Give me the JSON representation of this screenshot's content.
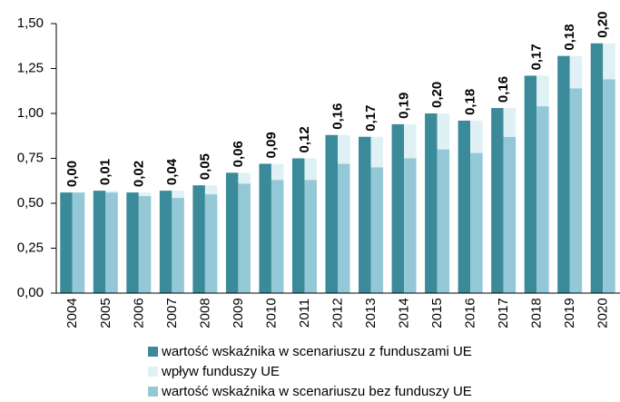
{
  "chart_data": {
    "type": "bar",
    "categories": [
      "2004",
      "2005",
      "2006",
      "2007",
      "2008",
      "2009",
      "2010",
      "2011",
      "2012",
      "2013",
      "2014",
      "2015",
      "2016",
      "2017",
      "2018",
      "2019",
      "2020"
    ],
    "series": [
      {
        "name": "wartość wskaźnika w scenariuszu z funduszami UE",
        "color": "#3a8a99",
        "values": [
          0.56,
          0.57,
          0.56,
          0.57,
          0.6,
          0.67,
          0.72,
          0.75,
          0.88,
          0.87,
          0.94,
          1.0,
          0.96,
          1.03,
          1.21,
          1.32,
          1.39
        ]
      },
      {
        "name": "wpływ funduszy UE",
        "color": "#e0f1f6",
        "values": [
          0.0,
          0.01,
          0.02,
          0.04,
          0.05,
          0.06,
          0.09,
          0.12,
          0.16,
          0.17,
          0.19,
          0.2,
          0.18,
          0.16,
          0.17,
          0.18,
          0.2
        ],
        "value_labels": [
          "0,00",
          "0,01",
          "0,02",
          "0,04",
          "0,05",
          "0,06",
          "0,09",
          "0,12",
          "0,16",
          "0,17",
          "0,19",
          "0,20",
          "0,18",
          "0,16",
          "0,17",
          "0,18",
          "0,20"
        ]
      },
      {
        "name": "wartość wskaźnika w scenariuszu bez funduszy UE",
        "color": "#94c8d6",
        "values": [
          0.56,
          0.56,
          0.54,
          0.53,
          0.55,
          0.61,
          0.63,
          0.63,
          0.72,
          0.7,
          0.75,
          0.8,
          0.78,
          0.87,
          1.04,
          1.14,
          1.19
        ]
      }
    ],
    "ylim": [
      0,
      1.5
    ],
    "yticks": [
      {
        "value": 0,
        "label": "0,00"
      },
      {
        "value": 0.25,
        "label": "0,25"
      },
      {
        "value": 0.5,
        "label": "0,50"
      },
      {
        "value": 0.75,
        "label": "0,75"
      },
      {
        "value": 1.0,
        "label": "1,00"
      },
      {
        "value": 1.25,
        "label": "1,25"
      },
      {
        "value": 1.5,
        "label": "1,50"
      }
    ]
  }
}
